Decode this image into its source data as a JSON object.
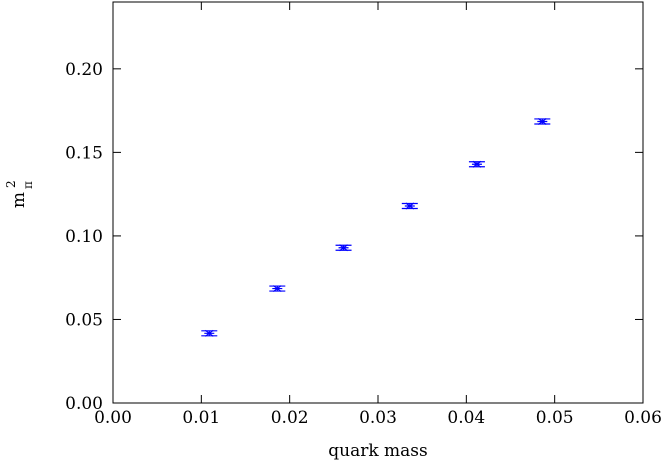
{
  "chart_data": {
    "type": "scatter",
    "x_label": "quark mass",
    "y_label": {
      "base": "m",
      "sub": "π",
      "sup": "2"
    },
    "xlim": [
      0,
      0.06
    ],
    "xticks": [
      {
        "value": 0,
        "label": "0.00"
      },
      {
        "value": 0.01,
        "label": "0.01"
      },
      {
        "value": 0.02,
        "label": "0.02"
      },
      {
        "value": 0.03,
        "label": "0.03"
      },
      {
        "value": 0.04,
        "label": "0.04"
      },
      {
        "value": 0.05,
        "label": "0.05"
      },
      {
        "value": 0.06,
        "label": "0.06"
      }
    ],
    "ylim": [
      0,
      0.24
    ],
    "yticks": [
      {
        "value": 0,
        "label": "0.00"
      },
      {
        "value": 0.05,
        "label": "0.05"
      },
      {
        "value": 0.1,
        "label": "0.10"
      },
      {
        "value": 0.15,
        "label": "0.15"
      },
      {
        "value": 0.2,
        "label": "0.20"
      }
    ],
    "series": [
      {
        "color": "#0000ff",
        "x": [
          0.0109,
          0.0186,
          0.0261,
          0.0336,
          0.0412,
          0.0486
        ],
        "values": [
          0.0417,
          0.0685,
          0.0929,
          0.1179,
          0.1429,
          0.1685
        ],
        "errors": [
          0.0015,
          0.0015,
          0.0015,
          0.0015,
          0.0015,
          0.0015
        ]
      }
    ]
  }
}
